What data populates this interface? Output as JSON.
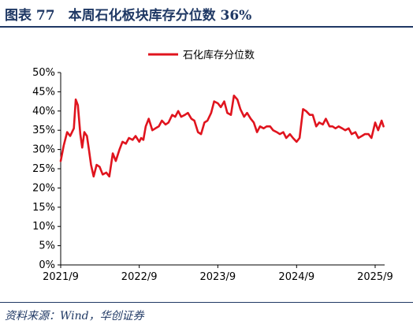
{
  "header": {
    "title": "图表 77　本周石化板块库存分位数 36%"
  },
  "footer": {
    "source": "资料来源：Wind，华创证券"
  },
  "colors": {
    "series": "#e0141e",
    "header": "#1f3864"
  },
  "chart_data": {
    "type": "line",
    "title": "",
    "xlabel": "",
    "ylabel": "",
    "ylim": [
      0,
      0.5
    ],
    "y_ticks": [
      0,
      0.05,
      0.1,
      0.15,
      0.2,
      0.25,
      0.3,
      0.35,
      0.4,
      0.45,
      0.5
    ],
    "y_tick_labels": [
      "0%",
      "5%",
      "10%",
      "15%",
      "20%",
      "25%",
      "30%",
      "35%",
      "40%",
      "45%",
      "50%"
    ],
    "x_range": [
      "2021-09-01",
      "2025-10-15"
    ],
    "x_ticks": [
      "2021-09-01",
      "2022-09-01",
      "2023-09-01",
      "2024-09-01",
      "2025-09-01"
    ],
    "x_tick_labels": [
      "2021/9",
      "2022/9",
      "2023/9",
      "2024/9",
      "2025/9"
    ],
    "legend": {
      "position": "top-center"
    },
    "grid": false,
    "series": [
      {
        "name": "石化库存分位数",
        "x": [
          "2021-09-01",
          "2021-09-15",
          "2021-10-01",
          "2021-10-15",
          "2021-11-01",
          "2021-11-10",
          "2021-11-20",
          "2021-12-01",
          "2021-12-10",
          "2021-12-20",
          "2022-01-01",
          "2022-01-10",
          "2022-01-20",
          "2022-02-01",
          "2022-02-15",
          "2022-03-01",
          "2022-03-15",
          "2022-04-01",
          "2022-04-15",
          "2022-05-01",
          "2022-05-15",
          "2022-06-01",
          "2022-06-15",
          "2022-07-01",
          "2022-07-15",
          "2022-08-01",
          "2022-08-15",
          "2022-09-01",
          "2022-09-10",
          "2022-09-20",
          "2022-10-01",
          "2022-10-15",
          "2022-11-01",
          "2022-11-15",
          "2022-12-01",
          "2022-12-15",
          "2023-01-01",
          "2023-01-15",
          "2023-02-01",
          "2023-02-15",
          "2023-03-01",
          "2023-03-15",
          "2023-04-01",
          "2023-04-15",
          "2023-05-01",
          "2023-05-15",
          "2023-06-01",
          "2023-06-15",
          "2023-07-01",
          "2023-07-15",
          "2023-08-01",
          "2023-08-15",
          "2023-09-01",
          "2023-09-15",
          "2023-10-01",
          "2023-10-15",
          "2023-11-01",
          "2023-11-15",
          "2023-12-01",
          "2023-12-15",
          "2024-01-01",
          "2024-01-15",
          "2024-02-01",
          "2024-02-15",
          "2024-03-01",
          "2024-03-15",
          "2024-04-01",
          "2024-04-15",
          "2024-05-01",
          "2024-05-15",
          "2024-06-01",
          "2024-06-15",
          "2024-07-01",
          "2024-07-15",
          "2024-08-01",
          "2024-08-15",
          "2024-09-01",
          "2024-09-15",
          "2024-10-01",
          "2024-10-15",
          "2024-11-01",
          "2024-11-15",
          "2024-12-01",
          "2024-12-15",
          "2025-01-01",
          "2025-01-15",
          "2025-02-01",
          "2025-02-15",
          "2025-03-01",
          "2025-03-15",
          "2025-04-01",
          "2025-04-15",
          "2025-05-01",
          "2025-05-15",
          "2025-06-01",
          "2025-06-15",
          "2025-07-01",
          "2025-07-15",
          "2025-08-01",
          "2025-08-15",
          "2025-09-01",
          "2025-09-15",
          "2025-10-01",
          "2025-10-10"
        ],
        "y": [
          0.27,
          0.31,
          0.345,
          0.335,
          0.355,
          0.43,
          0.415,
          0.34,
          0.305,
          0.345,
          0.335,
          0.3,
          0.26,
          0.23,
          0.26,
          0.255,
          0.235,
          0.24,
          0.23,
          0.29,
          0.27,
          0.3,
          0.32,
          0.315,
          0.33,
          0.325,
          0.335,
          0.32,
          0.33,
          0.325,
          0.36,
          0.38,
          0.35,
          0.355,
          0.36,
          0.375,
          0.365,
          0.37,
          0.39,
          0.385,
          0.4,
          0.385,
          0.39,
          0.395,
          0.38,
          0.375,
          0.345,
          0.34,
          0.37,
          0.375,
          0.395,
          0.425,
          0.42,
          0.41,
          0.425,
          0.395,
          0.39,
          0.44,
          0.43,
          0.405,
          0.385,
          0.395,
          0.38,
          0.37,
          0.345,
          0.36,
          0.355,
          0.36,
          0.36,
          0.35,
          0.345,
          0.34,
          0.345,
          0.33,
          0.34,
          0.33,
          0.32,
          0.33,
          0.405,
          0.4,
          0.39,
          0.39,
          0.36,
          0.37,
          0.365,
          0.38,
          0.36,
          0.36,
          0.355,
          0.36,
          0.355,
          0.35,
          0.355,
          0.34,
          0.345,
          0.33,
          0.335,
          0.34,
          0.34,
          0.33,
          0.37,
          0.35,
          0.375,
          0.36
        ]
      }
    ]
  }
}
